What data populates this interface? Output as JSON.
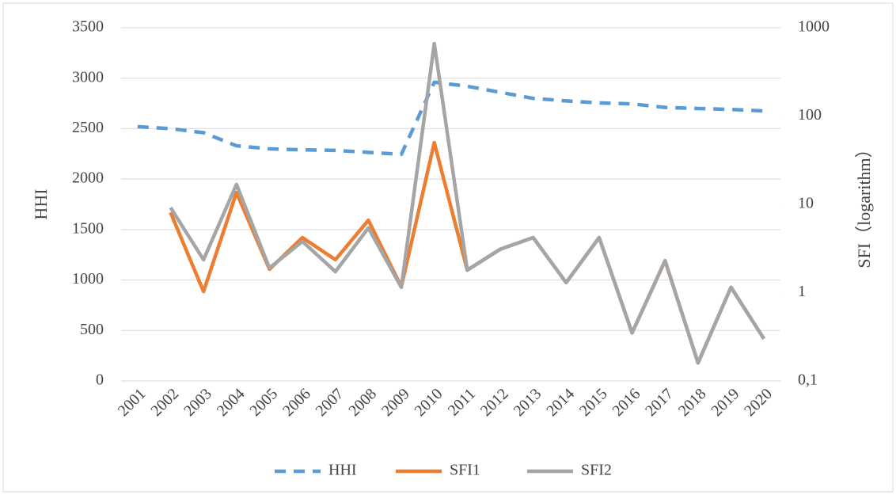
{
  "chart_data": {
    "type": "line",
    "categories": [
      "2001",
      "2002",
      "2003",
      "2004",
      "2005",
      "2006",
      "2007",
      "2008",
      "2009",
      "2010",
      "2011",
      "2012",
      "2013",
      "2014",
      "2015",
      "2016",
      "2017",
      "2018",
      "2019",
      "2020"
    ],
    "series": [
      {
        "name": "HHI",
        "color": "#5b9bd5",
        "dash": true,
        "axis": "y",
        "values": [
          2520,
          2500,
          2460,
          2330,
          2300,
          2290,
          2285,
          2265,
          2245,
          2960,
          2920,
          2860,
          2800,
          2775,
          2755,
          2745,
          2710,
          2700,
          2690,
          2675
        ]
      },
      {
        "name": "SFI1",
        "color": "#ed7d31",
        "axis": "y2",
        "values": [
          null,
          8.1,
          1.03,
          13.6,
          1.84,
          4.2,
          2.36,
          6.6,
          1.17,
          50,
          1.8,
          3.1,
          4.2,
          1.3,
          4.2,
          0.35,
          2.3,
          0.16,
          1.15,
          0.3
        ]
      },
      {
        "name": "SFI2",
        "color": "#a5a5a5",
        "axis": "y2",
        "values": [
          null,
          9.2,
          2.36,
          16.8,
          1.9,
          3.8,
          1.73,
          5.4,
          1.15,
          660,
          1.8,
          3.1,
          4.2,
          1.3,
          4.2,
          0.35,
          2.3,
          0.16,
          1.15,
          0.3
        ]
      }
    ],
    "ylabel": "HHI",
    "y2label": "SFI（logarithm）",
    "ylim": [
      0,
      3500
    ],
    "yticks": [
      0,
      500,
      1000,
      1500,
      2000,
      2500,
      3000,
      3500
    ],
    "y2lim": [
      0.1,
      1000
    ],
    "y2log": true,
    "y2ticks": [
      {
        "value": 0.1,
        "label": "0,1"
      },
      1,
      10,
      100,
      1000
    ],
    "grid": true,
    "legend": "bottom"
  }
}
